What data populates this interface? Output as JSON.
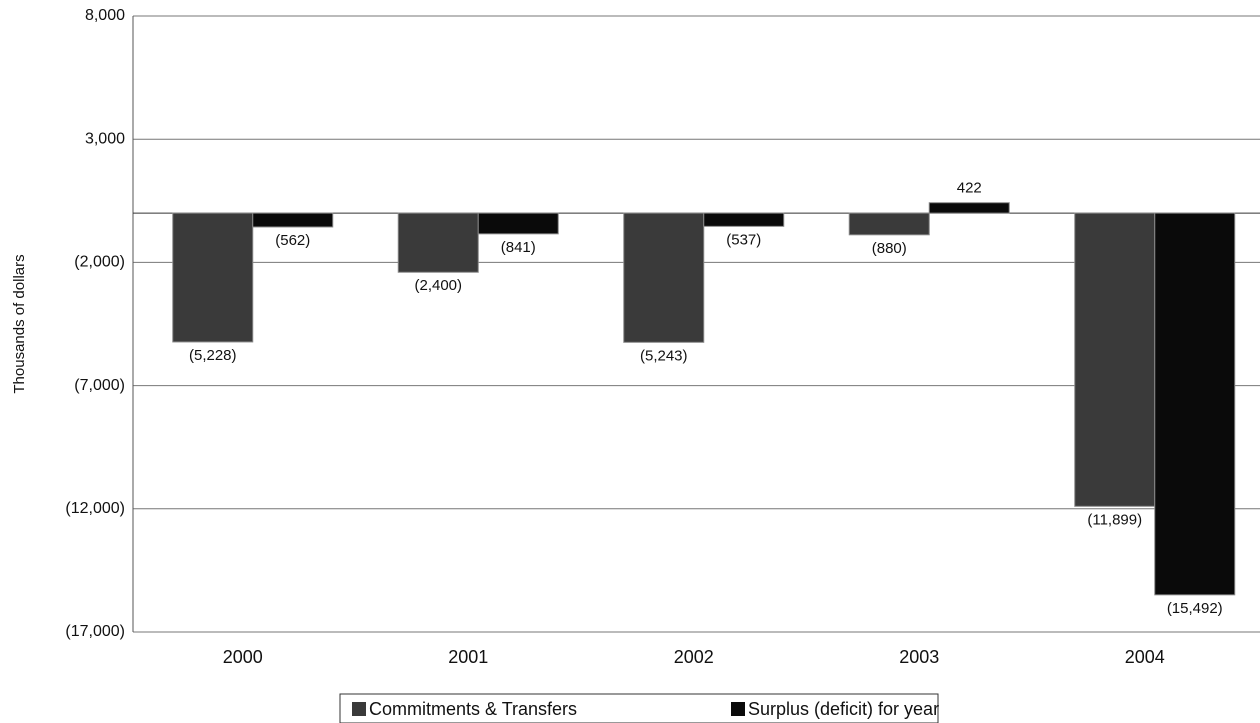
{
  "chart_data": {
    "type": "bar",
    "y_label": "Thousands of dollars",
    "categories": [
      "2000",
      "2001",
      "2002",
      "2003",
      "2004"
    ],
    "series": [
      {
        "name": "Commitments & Transfers",
        "color": "#3a3a3a",
        "values": [
          -5228,
          -2400,
          -5243,
          -880,
          -11899
        ],
        "value_labels": [
          "(5,228)",
          "(2,400)",
          "(5,243)",
          "(880)",
          "(11,899)"
        ]
      },
      {
        "name": "Surplus (deficit) for year",
        "color": "#0a0a0a",
        "values": [
          -562,
          -841,
          -537,
          422,
          -15492
        ],
        "value_labels": [
          "(562)",
          "(841)",
          "(537)",
          "422",
          "(15,492)"
        ]
      }
    ],
    "ylim": [
      -17000,
      8000
    ],
    "yticks": [
      {
        "value": -17000,
        "label": "(17,000)"
      },
      {
        "value": -12000,
        "label": "(12,000)"
      },
      {
        "value": -7000,
        "label": "(7,000)"
      },
      {
        "value": -2000,
        "label": "(2,000)"
      },
      {
        "value": 3000,
        "label": "3,000"
      },
      {
        "value": 8000,
        "label": "8,000"
      }
    ],
    "grid": true
  }
}
